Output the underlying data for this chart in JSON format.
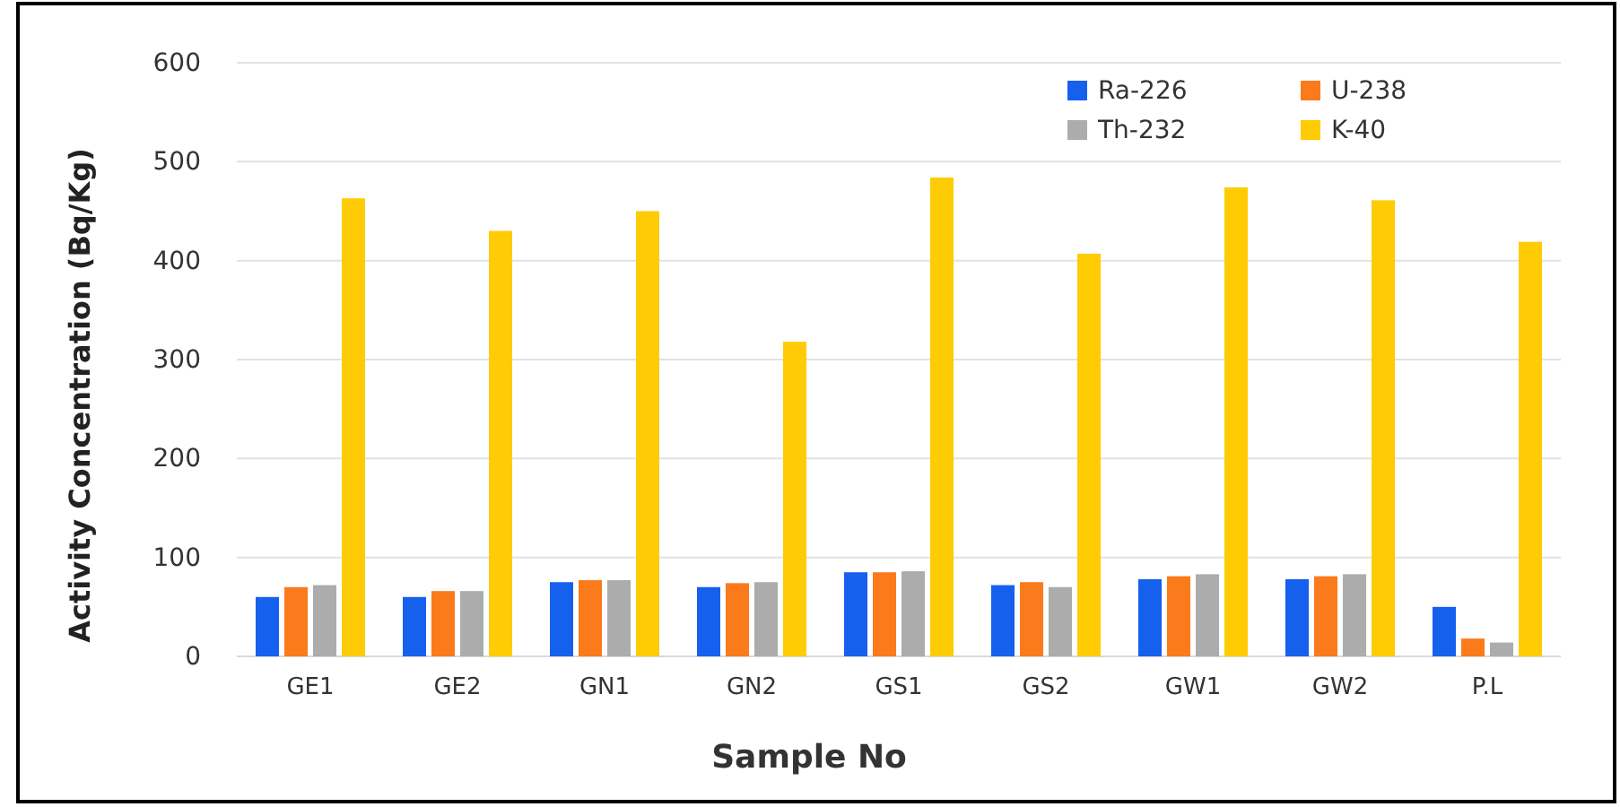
{
  "chart_data": {
    "type": "bar",
    "xlabel": "Sample No",
    "ylabel": "Activity Concentration (Bq/Kg)",
    "categories": [
      "GE1",
      "GE2",
      "GN1",
      "GN2",
      "GS1",
      "GS2",
      "GW1",
      "GW2",
      "P.L"
    ],
    "series": [
      {
        "name": "Ra-226",
        "color": "#1660ee",
        "values": [
          60,
          60,
          75,
          70,
          85,
          72,
          78,
          78,
          50
        ]
      },
      {
        "name": "U-238",
        "color": "#fb7a1c",
        "values": [
          70,
          66,
          77,
          74,
          85,
          75,
          81,
          81,
          18
        ]
      },
      {
        "name": "Th-232",
        "color": "#acacac",
        "values": [
          72,
          66,
          77,
          75,
          86,
          70,
          83,
          83,
          14
        ]
      },
      {
        "name": "K-40",
        "color": "#ffcb05",
        "values": [
          463,
          430,
          450,
          318,
          484,
          407,
          474,
          461,
          419
        ]
      }
    ],
    "ylim": [
      0,
      600
    ],
    "yticks": [
      0,
      100,
      200,
      300,
      400,
      500,
      600
    ],
    "grid": "y",
    "legend": "top right"
  }
}
